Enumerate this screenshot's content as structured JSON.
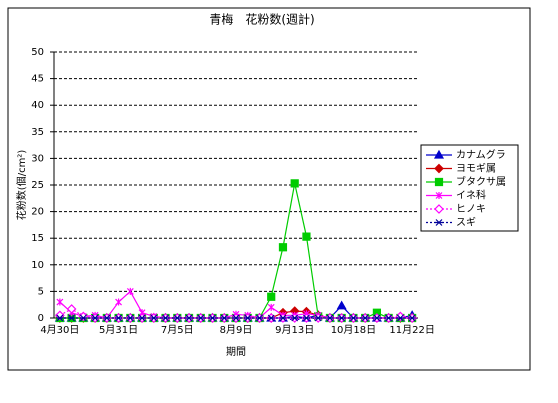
{
  "chart_data": {
    "type": "line",
    "title": "青梅　花粉数(週計)",
    "x_label": "期間",
    "y_label": "花粉数(個/cm²)",
    "categories": [
      "4月30日",
      null,
      null,
      null,
      null,
      "5月31日",
      null,
      null,
      null,
      null,
      "7月5日",
      null,
      null,
      null,
      null,
      "8月9日",
      null,
      null,
      null,
      null,
      "9月13日",
      null,
      null,
      null,
      null,
      "10月18日",
      null,
      null,
      null,
      null,
      "11月22日"
    ],
    "ylim": [
      0,
      50
    ],
    "yticks": [
      0,
      5,
      10,
      15,
      20,
      25,
      30,
      35,
      40,
      45,
      50
    ],
    "grid": true,
    "legend": "right",
    "series": [
      {
        "name": "カナムグラ",
        "color": "#0000cc",
        "marker": "triangle",
        "dash": false,
        "values": [
          0,
          0,
          0,
          0,
          0,
          0,
          0,
          0,
          0,
          0,
          0,
          0,
          0,
          0,
          0,
          0,
          0,
          0,
          0,
          0,
          0.3,
          0,
          0.5,
          0,
          2.3,
          0,
          0,
          0,
          0,
          0,
          0.5
        ]
      },
      {
        "name": "ヨモギ属",
        "color": "#cc0000",
        "marker": "diamond",
        "dash": false,
        "values": [
          0,
          0,
          0,
          0,
          0,
          0,
          0,
          0,
          0,
          0,
          0,
          0,
          0,
          0,
          0,
          0,
          0,
          0,
          0,
          1,
          1.3,
          1.2,
          0.5,
          0,
          0,
          0,
          0,
          0,
          0,
          0,
          0
        ]
      },
      {
        "name": "ブタクサ属",
        "color": "#00cc00",
        "marker": "square",
        "dash": false,
        "values": [
          0,
          0,
          0,
          0,
          0,
          0,
          0,
          0,
          0,
          0,
          0,
          0,
          0,
          0,
          0,
          0,
          0,
          0,
          4,
          13.3,
          25.3,
          15.3,
          0.3,
          0,
          0,
          0,
          0,
          1,
          0,
          0,
          0
        ]
      },
      {
        "name": "イネ科",
        "color": "#ff00ff",
        "marker": "star",
        "dash": false,
        "values": [
          3,
          1,
          0.3,
          0.5,
          0,
          3,
          5,
          1,
          0.3,
          0,
          0,
          0,
          0,
          0,
          0,
          0.7,
          0.5,
          0,
          2,
          0.5,
          0.5,
          0.8,
          0.5,
          0,
          0,
          0,
          0,
          0,
          0,
          0,
          0
        ]
      },
      {
        "name": "ヒノキ",
        "color": "#ff00ff",
        "marker": "open-diamond",
        "dash": true,
        "values": [
          0.5,
          1.7,
          0.3,
          0,
          0,
          0,
          0,
          0,
          0,
          0,
          0,
          0,
          0,
          0,
          0,
          0,
          0,
          0,
          0,
          0,
          0,
          0,
          0,
          0,
          0,
          0,
          0,
          0,
          0,
          0.3,
          0
        ]
      },
      {
        "name": "スギ",
        "color": "#000099",
        "marker": "asterisk",
        "dash": true,
        "values": [
          0,
          0,
          0,
          0,
          0,
          0,
          0,
          0,
          0,
          0,
          0,
          0,
          0,
          0,
          0,
          0,
          0,
          0,
          0,
          0,
          0,
          0,
          0,
          0,
          0,
          0,
          0,
          0,
          0,
          0,
          0
        ]
      }
    ]
  }
}
